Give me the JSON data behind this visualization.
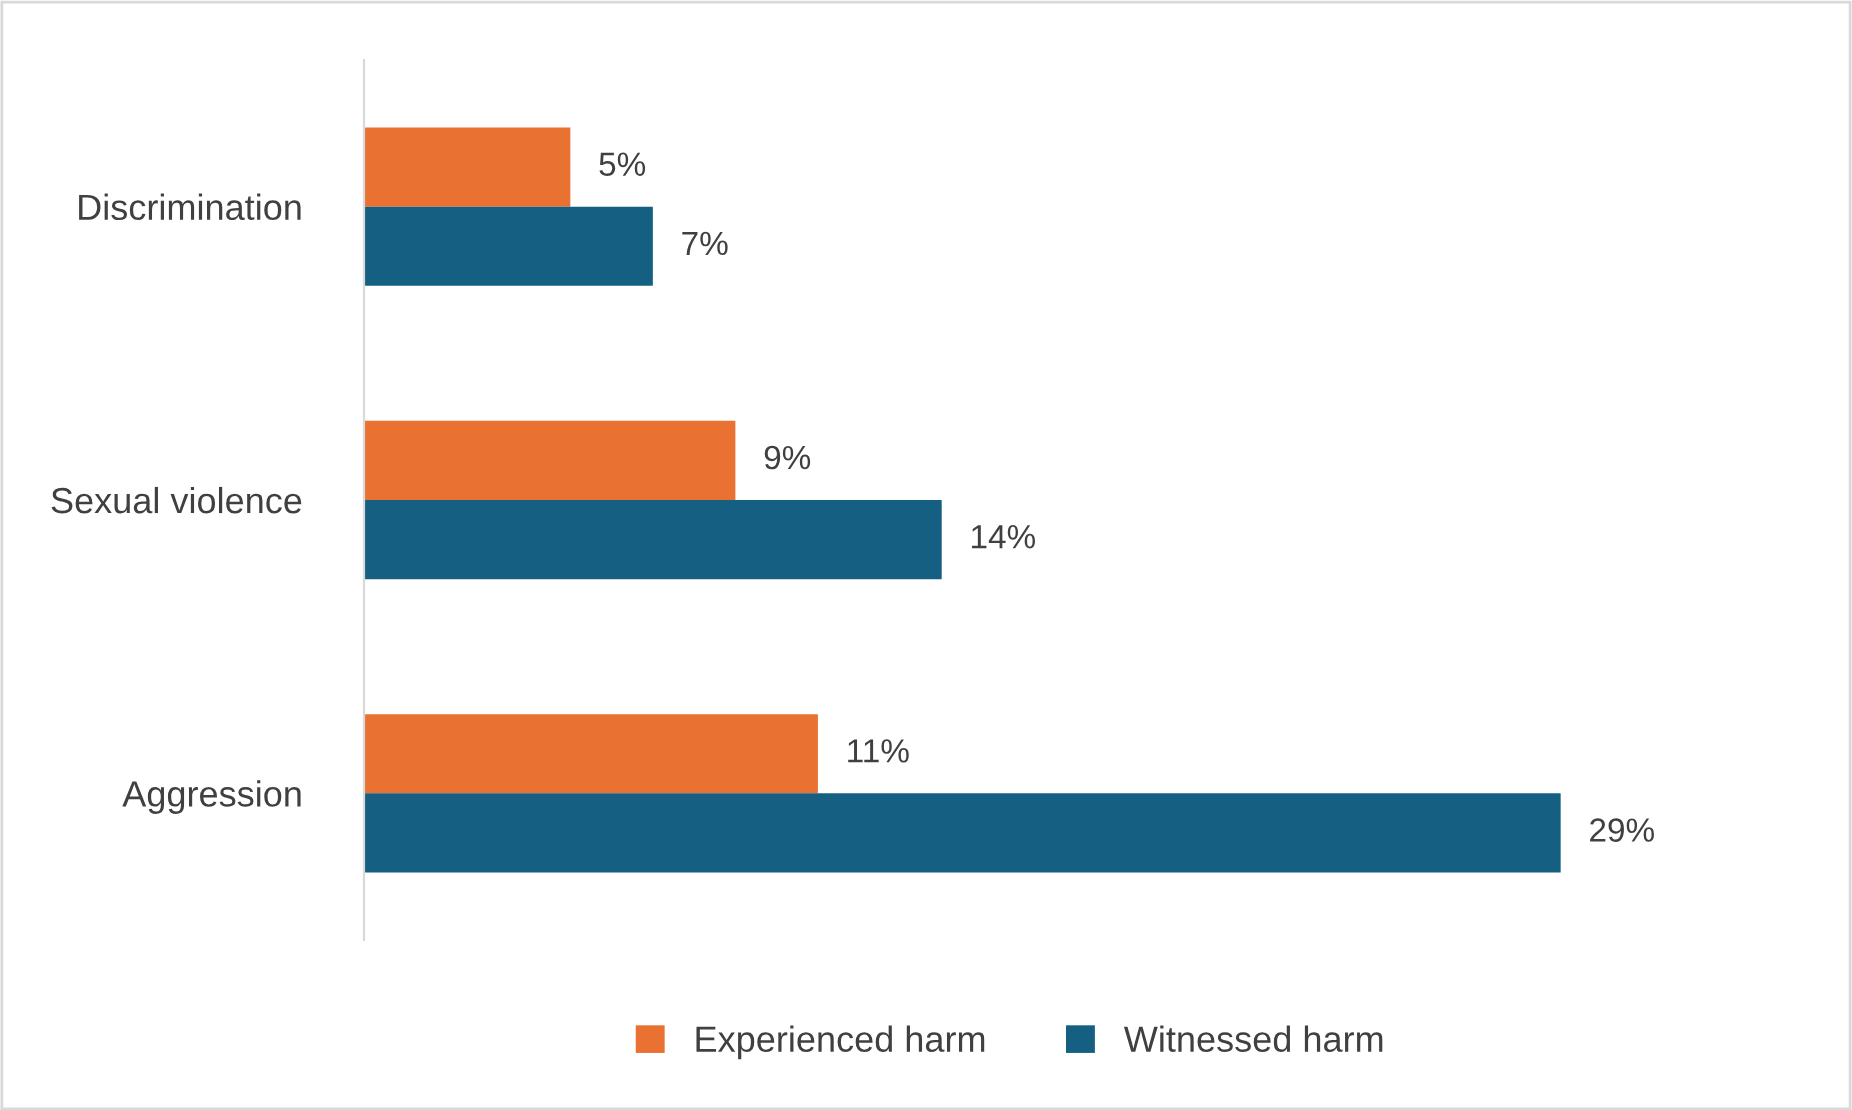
{
  "chart_data": {
    "type": "bar",
    "orientation": "horizontal",
    "categories": [
      "Discrimination",
      "Sexual violence",
      "Aggression"
    ],
    "series": [
      {
        "name": "Experienced harm",
        "color": "#e97132",
        "values": [
          5,
          9,
          11
        ],
        "value_labels": [
          "5%",
          "9%",
          "11%"
        ]
      },
      {
        "name": "Witnessed harm",
        "color": "#156082",
        "values": [
          7,
          14,
          29
        ],
        "value_labels": [
          "7%",
          "14%",
          "29%"
        ]
      }
    ],
    "legend": "bottom",
    "tick_labels": "y"
  }
}
